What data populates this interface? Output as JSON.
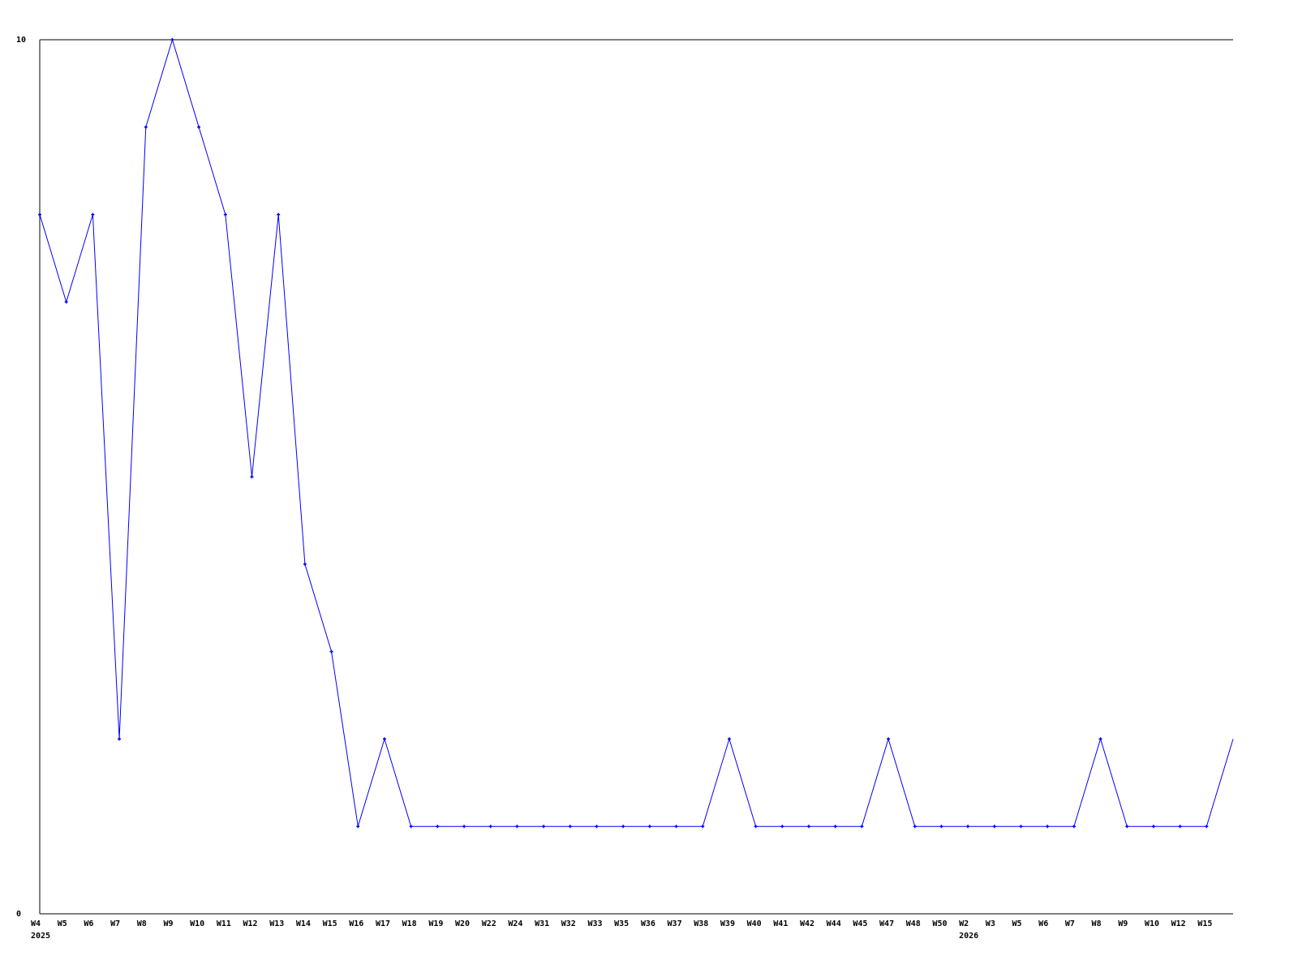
{
  "chart_data": {
    "type": "line",
    "title": "",
    "xlabel": "",
    "ylabel": "",
    "ylim": [
      0,
      10
    ],
    "y_ticks": [
      "0",
      "10"
    ],
    "grid": false,
    "line_color": "#0000ff",
    "x": [
      "W4",
      "W5",
      "W6",
      "W7",
      "W8",
      "W9",
      "W10",
      "W11",
      "W12",
      "W13",
      "W14",
      "W15",
      "W16",
      "W17",
      "W18",
      "W19",
      "W20",
      "W22",
      "W24",
      "W31",
      "W32",
      "W33",
      "W35",
      "W36",
      "W37",
      "W38",
      "W39",
      "W40",
      "W41",
      "W42",
      "W44",
      "W45",
      "W47",
      "W48",
      "W50",
      "W2",
      "W3",
      "W5",
      "W6",
      "W7",
      "W8",
      "W9",
      "W10",
      "W12",
      "W15",
      ""
    ],
    "values": [
      8,
      7,
      8,
      2,
      9,
      10,
      9,
      8,
      5,
      8,
      4,
      3,
      1,
      2,
      1,
      1,
      1,
      1,
      1,
      1,
      1,
      1,
      1,
      1,
      1,
      1,
      2,
      1,
      1,
      1,
      1,
      1,
      2,
      1,
      1,
      1,
      1,
      1,
      1,
      1,
      2,
      1,
      1,
      1,
      1,
      2
    ],
    "year_labels": [
      {
        "index": 0,
        "label": "2025"
      },
      {
        "index": 35,
        "label": "2026"
      }
    ]
  }
}
